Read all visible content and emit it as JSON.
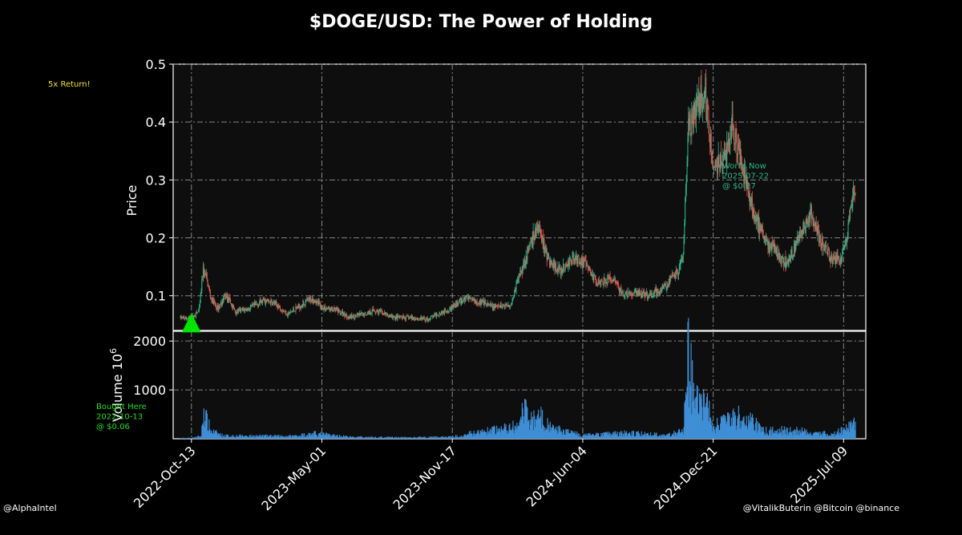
{
  "chart_data": {
    "type": "candlestick",
    "title": "$DOGE/USD: The Power of Holding",
    "price_panel": {
      "ylabel": "Price",
      "ylim": [
        0.04,
        0.5
      ],
      "yticks": [
        0.1,
        0.2,
        0.3,
        0.4,
        0.5
      ],
      "ytick_labels": [
        "0.1",
        "0.2",
        "0.3",
        "0.4",
        "0.5"
      ],
      "series_points": [
        [
          "2022-09-26",
          0.062
        ],
        [
          "2022-10-13",
          0.06
        ],
        [
          "2022-10-25",
          0.075
        ],
        [
          "2022-10-31",
          0.145
        ],
        [
          "2022-11-05",
          0.13
        ],
        [
          "2022-11-12",
          0.095
        ],
        [
          "2022-11-22",
          0.078
        ],
        [
          "2022-12-05",
          0.1
        ],
        [
          "2022-12-20",
          0.072
        ],
        [
          "2023-01-10",
          0.078
        ],
        [
          "2023-02-01",
          0.092
        ],
        [
          "2023-02-20",
          0.085
        ],
        [
          "2023-03-10",
          0.068
        ],
        [
          "2023-04-01",
          0.085
        ],
        [
          "2023-04-18",
          0.095
        ],
        [
          "2023-05-01",
          0.08
        ],
        [
          "2023-05-25",
          0.074
        ],
        [
          "2023-06-12",
          0.063
        ],
        [
          "2023-07-05",
          0.068
        ],
        [
          "2023-07-20",
          0.075
        ],
        [
          "2023-08-20",
          0.062
        ],
        [
          "2023-09-15",
          0.062
        ],
        [
          "2023-10-10",
          0.059
        ],
        [
          "2023-10-25",
          0.068
        ],
        [
          "2023-11-17",
          0.08
        ],
        [
          "2023-12-10",
          0.098
        ],
        [
          "2023-12-25",
          0.09
        ],
        [
          "2024-01-20",
          0.08
        ],
        [
          "2024-02-15",
          0.085
        ],
        [
          "2024-02-29",
          0.14
        ],
        [
          "2024-03-10",
          0.17
        ],
        [
          "2024-03-28",
          0.22
        ],
        [
          "2024-04-13",
          0.16
        ],
        [
          "2024-05-01",
          0.14
        ],
        [
          "2024-05-20",
          0.165
        ],
        [
          "2024-06-04",
          0.16
        ],
        [
          "2024-06-25",
          0.125
        ],
        [
          "2024-07-20",
          0.13
        ],
        [
          "2024-08-05",
          0.1
        ],
        [
          "2024-08-25",
          0.105
        ],
        [
          "2024-09-15",
          0.1
        ],
        [
          "2024-10-01",
          0.11
        ],
        [
          "2024-10-28",
          0.14
        ],
        [
          "2024-11-05",
          0.17
        ],
        [
          "2024-11-12",
          0.38
        ],
        [
          "2024-11-25",
          0.42
        ],
        [
          "2024-12-08",
          0.46
        ],
        [
          "2024-12-21",
          0.32
        ],
        [
          "2025-01-10",
          0.34
        ],
        [
          "2025-01-18",
          0.4
        ],
        [
          "2025-02-01",
          0.33
        ],
        [
          "2025-02-20",
          0.25
        ],
        [
          "2025-03-10",
          0.19
        ],
        [
          "2025-03-25",
          0.18
        ],
        [
          "2025-04-08",
          0.155
        ],
        [
          "2025-04-20",
          0.17
        ],
        [
          "2025-05-10",
          0.22
        ],
        [
          "2025-05-20",
          0.24
        ],
        [
          "2025-06-05",
          0.19
        ],
        [
          "2025-06-22",
          0.16
        ],
        [
          "2025-07-05",
          0.165
        ],
        [
          "2025-07-14",
          0.2
        ],
        [
          "2025-07-22",
          0.27
        ],
        [
          "2025-07-27",
          0.285
        ]
      ]
    },
    "volume_panel": {
      "ylabel": "Volume  10^6",
      "ylabel_main": "Volume",
      "ylabel_unit_base": "10",
      "ylabel_unit_exp": "6",
      "ylim": [
        0,
        2200
      ],
      "yticks": [
        1000,
        2000
      ],
      "ytick_labels": [
        "1000",
        "2000"
      ],
      "series_points": [
        [
          "2022-09-26",
          15
        ],
        [
          "2022-10-13",
          20
        ],
        [
          "2022-10-28",
          60
        ],
        [
          "2022-11-01",
          680
        ],
        [
          "2022-11-05",
          450
        ],
        [
          "2022-11-12",
          180
        ],
        [
          "2022-12-01",
          70
        ],
        [
          "2023-03-15",
          60
        ],
        [
          "2023-04-20",
          120
        ],
        [
          "2023-06-15",
          40
        ],
        [
          "2023-09-15",
          30
        ],
        [
          "2023-11-17",
          45
        ],
        [
          "2023-12-10",
          110
        ],
        [
          "2024-02-29",
          300
        ],
        [
          "2024-03-05",
          720
        ],
        [
          "2024-03-15",
          420
        ],
        [
          "2024-03-28",
          580
        ],
        [
          "2024-04-15",
          260
        ],
        [
          "2024-06-04",
          80
        ],
        [
          "2024-08-05",
          130
        ],
        [
          "2024-10-15",
          90
        ],
        [
          "2024-11-05",
          250
        ],
        [
          "2024-11-12",
          2050
        ],
        [
          "2024-11-20",
          1100
        ],
        [
          "2024-11-28",
          800
        ],
        [
          "2024-12-08",
          900
        ],
        [
          "2024-12-21",
          300
        ],
        [
          "2025-01-18",
          450
        ],
        [
          "2025-02-03",
          550
        ],
        [
          "2025-03-10",
          180
        ],
        [
          "2025-04-08",
          200
        ],
        [
          "2025-05-10",
          180
        ],
        [
          "2025-06-22",
          100
        ],
        [
          "2025-07-22",
          300
        ],
        [
          "2025-07-27",
          380
        ]
      ]
    },
    "x_axis": {
      "tick_labels": [
        "2022-Oct-13",
        "2023-May-01",
        "2023-Nov-17",
        "2024-Jun-04",
        "2024-Dec-21",
        "2025-Jul-09"
      ],
      "range": [
        "2022-09-15",
        "2025-08-12"
      ]
    },
    "up_color": "#2bb58a",
    "down_color": "#e0554d",
    "volume_color": "#3f8ed6",
    "grid": true,
    "annotations": {
      "bought": {
        "lines": [
          "Bought Here",
          "2022-10-13",
          "@ $0.06"
        ],
        "color": "#22dd22",
        "date": "2022-10-13",
        "price": 0.06
      },
      "now": {
        "lines": [
          "Worth Now",
          "2025-07-22",
          "@ $0.27"
        ],
        "color": "#2bb58a",
        "date": "2025-07-22",
        "price": 0.27
      },
      "return_text": "5x Return!",
      "return_color": "#f2e033",
      "marker_color": "#00e500"
    }
  },
  "credits": {
    "left": "@AlphaIntel",
    "right": "@VitalikButerin @Bitcoin @binance"
  }
}
